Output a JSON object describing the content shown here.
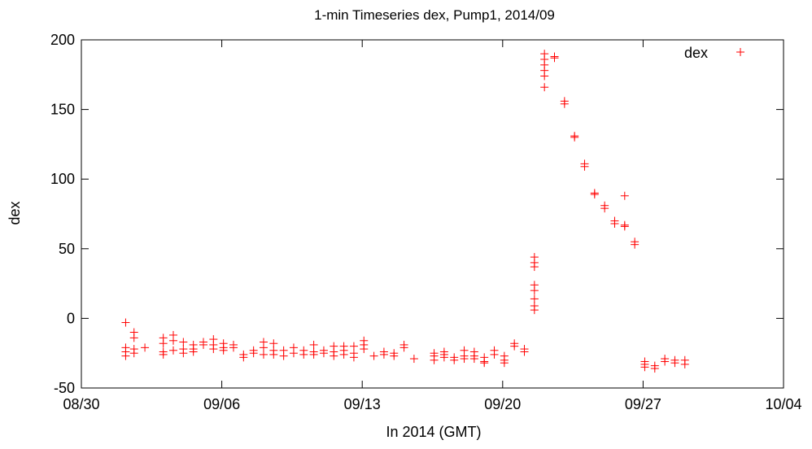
{
  "chart_data": {
    "type": "scatter",
    "title": "1-min Timeseries dex, Pump1, 2014/09",
    "xlabel": "In 2014 (GMT)",
    "ylabel": "dex",
    "x_axis": {
      "type": "date",
      "range": [
        "2014-08-30",
        "2014-10-04"
      ],
      "ticks": [
        "2014-08-30",
        "2014-09-06",
        "2014-09-13",
        "2014-09-20",
        "2014-09-27",
        "2014-10-04"
      ],
      "tick_labels": [
        "08/30",
        "09/06",
        "09/13",
        "09/20",
        "09/27",
        "10/04"
      ]
    },
    "y_axis": {
      "range": [
        -50,
        200
      ],
      "ticks": [
        -50,
        0,
        50,
        100,
        150,
        200
      ],
      "tick_labels": [
        "-50",
        "0",
        "50",
        "100",
        "150",
        "200"
      ]
    },
    "grid": false,
    "legend": {
      "position": "top-right",
      "entries": [
        "dex"
      ]
    },
    "marker": "plus",
    "color": "#ff0000",
    "series": [
      {
        "name": "dex",
        "points": [
          [
            "2014-09-01 05:00",
            -3
          ],
          [
            "2014-09-01 05:00",
            -21
          ],
          [
            "2014-09-01 05:00",
            -24
          ],
          [
            "2014-09-01 05:00",
            -27
          ],
          [
            "2014-09-01 15:00",
            -10
          ],
          [
            "2014-09-01 15:00",
            -14
          ],
          [
            "2014-09-01 15:00",
            -22
          ],
          [
            "2014-09-01 15:00",
            -25
          ],
          [
            "2014-09-02 04:00",
            -21
          ],
          [
            "2014-09-03 02:00",
            -14
          ],
          [
            "2014-09-03 02:00",
            -18
          ],
          [
            "2014-09-03 02:00",
            -24
          ],
          [
            "2014-09-03 02:00",
            -26
          ],
          [
            "2014-09-03 14:00",
            -12
          ],
          [
            "2014-09-03 14:00",
            -16
          ],
          [
            "2014-09-03 14:00",
            -23
          ],
          [
            "2014-09-04 02:00",
            -17
          ],
          [
            "2014-09-04 02:00",
            -22
          ],
          [
            "2014-09-04 02:00",
            -25
          ],
          [
            "2014-09-04 14:00",
            -19
          ],
          [
            "2014-09-04 14:00",
            -22
          ],
          [
            "2014-09-04 14:00",
            -24
          ],
          [
            "2014-09-05 02:00",
            -17
          ],
          [
            "2014-09-05 02:00",
            -19
          ],
          [
            "2014-09-05 14:00",
            -15
          ],
          [
            "2014-09-05 14:00",
            -19
          ],
          [
            "2014-09-05 14:00",
            -22
          ],
          [
            "2014-09-06 02:00",
            -18
          ],
          [
            "2014-09-06 02:00",
            -21
          ],
          [
            "2014-09-06 02:00",
            -23
          ],
          [
            "2014-09-06 14:00",
            -19
          ],
          [
            "2014-09-06 14:00",
            -21
          ],
          [
            "2014-09-07 02:00",
            -26
          ],
          [
            "2014-09-07 02:00",
            -28
          ],
          [
            "2014-09-07 14:00",
            -23
          ],
          [
            "2014-09-07 14:00",
            -25
          ],
          [
            "2014-09-08 02:00",
            -17
          ],
          [
            "2014-09-08 02:00",
            -21
          ],
          [
            "2014-09-08 02:00",
            -26
          ],
          [
            "2014-09-08 14:00",
            -18
          ],
          [
            "2014-09-08 14:00",
            -23
          ],
          [
            "2014-09-08 14:00",
            -26
          ],
          [
            "2014-09-09 02:00",
            -23
          ],
          [
            "2014-09-09 02:00",
            -27
          ],
          [
            "2014-09-09 14:00",
            -21
          ],
          [
            "2014-09-09 14:00",
            -25
          ],
          [
            "2014-09-10 02:00",
            -23
          ],
          [
            "2014-09-10 02:00",
            -26
          ],
          [
            "2014-09-10 14:00",
            -19
          ],
          [
            "2014-09-10 14:00",
            -24
          ],
          [
            "2014-09-10 14:00",
            -26
          ],
          [
            "2014-09-11 02:00",
            -23
          ],
          [
            "2014-09-11 02:00",
            -25
          ],
          [
            "2014-09-11 14:00",
            -20
          ],
          [
            "2014-09-11 14:00",
            -24
          ],
          [
            "2014-09-11 14:00",
            -27
          ],
          [
            "2014-09-12 02:00",
            -20
          ],
          [
            "2014-09-12 02:00",
            -23
          ],
          [
            "2014-09-12 02:00",
            -26
          ],
          [
            "2014-09-12 14:00",
            -20
          ],
          [
            "2014-09-12 14:00",
            -25
          ],
          [
            "2014-09-12 14:00",
            -28
          ],
          [
            "2014-09-13 02:00",
            -16
          ],
          [
            "2014-09-13 02:00",
            -19
          ],
          [
            "2014-09-13 02:00",
            -22
          ],
          [
            "2014-09-13 14:00",
            -27
          ],
          [
            "2014-09-14 02:00",
            -24
          ],
          [
            "2014-09-14 02:00",
            -26
          ],
          [
            "2014-09-14 14:00",
            -25
          ],
          [
            "2014-09-14 14:00",
            -27
          ],
          [
            "2014-09-15 02:00",
            -19
          ],
          [
            "2014-09-15 02:00",
            -21
          ],
          [
            "2014-09-15 14:00",
            -29
          ],
          [
            "2014-09-16 14:00",
            -25
          ],
          [
            "2014-09-16 14:00",
            -27
          ],
          [
            "2014-09-16 14:00",
            -30
          ],
          [
            "2014-09-17 02:00",
            -24
          ],
          [
            "2014-09-17 02:00",
            -26
          ],
          [
            "2014-09-17 02:00",
            -28
          ],
          [
            "2014-09-17 14:00",
            -28
          ],
          [
            "2014-09-17 14:00",
            -30
          ],
          [
            "2014-09-18 02:00",
            -23
          ],
          [
            "2014-09-18 02:00",
            -27
          ],
          [
            "2014-09-18 02:00",
            -29
          ],
          [
            "2014-09-18 14:00",
            -24
          ],
          [
            "2014-09-18 14:00",
            -27
          ],
          [
            "2014-09-18 14:00",
            -29
          ],
          [
            "2014-09-19 02:00",
            -28
          ],
          [
            "2014-09-19 02:00",
            -31
          ],
          [
            "2014-09-19 02:00",
            -32
          ],
          [
            "2014-09-19 14:00",
            -23
          ],
          [
            "2014-09-19 14:00",
            -26
          ],
          [
            "2014-09-20 02:00",
            -27
          ],
          [
            "2014-09-20 02:00",
            -30
          ],
          [
            "2014-09-20 02:00",
            -32
          ],
          [
            "2014-09-20 14:00",
            -18
          ],
          [
            "2014-09-20 14:00",
            -20
          ],
          [
            "2014-09-21 02:00",
            -22
          ],
          [
            "2014-09-21 02:00",
            -24
          ],
          [
            "2014-09-21 14:00",
            44
          ],
          [
            "2014-09-21 14:00",
            40
          ],
          [
            "2014-09-21 14:00",
            37
          ],
          [
            "2014-09-21 14:00",
            24
          ],
          [
            "2014-09-21 14:00",
            20
          ],
          [
            "2014-09-21 14:00",
            14
          ],
          [
            "2014-09-21 14:00",
            9
          ],
          [
            "2014-09-21 14:00",
            6
          ],
          [
            "2014-09-22 02:00",
            190
          ],
          [
            "2014-09-22 02:00",
            186
          ],
          [
            "2014-09-22 02:00",
            182
          ],
          [
            "2014-09-22 02:00",
            178
          ],
          [
            "2014-09-22 02:00",
            174
          ],
          [
            "2014-09-22 02:00",
            166
          ],
          [
            "2014-09-22 14:00",
            188
          ],
          [
            "2014-09-22 14:00",
            187
          ],
          [
            "2014-09-23 02:00",
            156
          ],
          [
            "2014-09-23 02:00",
            154
          ],
          [
            "2014-09-23 14:00",
            131
          ],
          [
            "2014-09-23 14:00",
            130
          ],
          [
            "2014-09-24 02:00",
            111
          ],
          [
            "2014-09-24 02:00",
            109
          ],
          [
            "2014-09-24 14:00",
            90
          ],
          [
            "2014-09-24 14:00",
            89
          ],
          [
            "2014-09-25 02:00",
            81
          ],
          [
            "2014-09-25 02:00",
            79
          ],
          [
            "2014-09-25 14:00",
            70
          ],
          [
            "2014-09-25 14:00",
            68
          ],
          [
            "2014-09-26 02:00",
            88
          ],
          [
            "2014-09-26 02:00",
            67
          ],
          [
            "2014-09-26 02:00",
            66
          ],
          [
            "2014-09-26 14:00",
            55
          ],
          [
            "2014-09-26 14:00",
            53
          ],
          [
            "2014-09-27 02:00",
            -31
          ],
          [
            "2014-09-27 02:00",
            -33
          ],
          [
            "2014-09-27 02:00",
            -35
          ],
          [
            "2014-09-27 14:00",
            -34
          ],
          [
            "2014-09-27 14:00",
            -36
          ],
          [
            "2014-09-28 02:00",
            -29
          ],
          [
            "2014-09-28 02:00",
            -31
          ],
          [
            "2014-09-28 14:00",
            -30
          ],
          [
            "2014-09-28 14:00",
            -32
          ],
          [
            "2014-09-29 02:00",
            -30
          ],
          [
            "2014-09-29 02:00",
            -33
          ]
        ]
      }
    ]
  }
}
